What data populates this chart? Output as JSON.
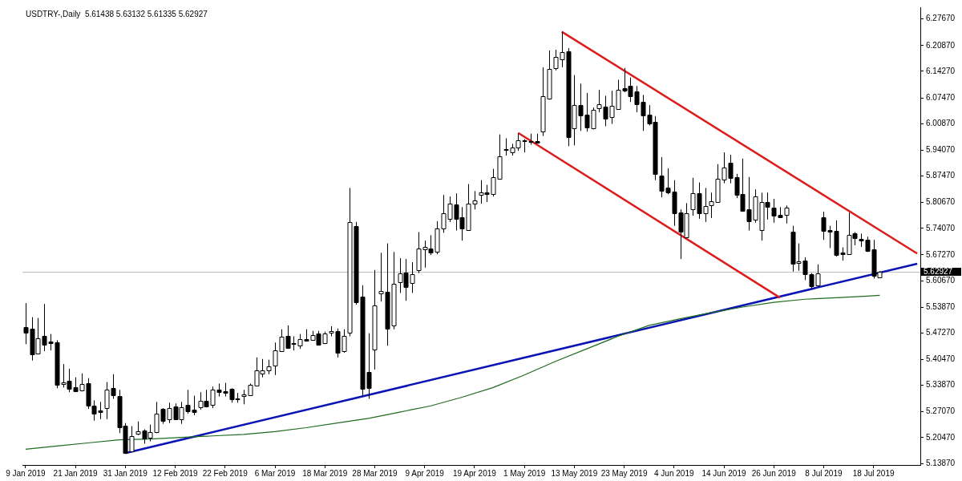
{
  "chart_data": {
    "type": "candlestick",
    "title": "USDTRY-,Daily  5.61438 5.63132 5.61335 5.62927",
    "categories": [
      "9 Jan 2019",
      null,
      null,
      null,
      null,
      null,
      null,
      null,
      "21 Jan 2019",
      null,
      null,
      null,
      null,
      null,
      null,
      null,
      "31 Jan 2019",
      null,
      null,
      null,
      null,
      null,
      null,
      null,
      "12 Feb 2019",
      null,
      null,
      null,
      null,
      null,
      null,
      null,
      "22 Feb 2019",
      null,
      null,
      null,
      null,
      null,
      null,
      null,
      "6 Mar 2019",
      null,
      null,
      null,
      null,
      null,
      null,
      null,
      "18 Mar 2019",
      null,
      null,
      null,
      null,
      null,
      null,
      null,
      "28 Mar 2019",
      null,
      null,
      null,
      null,
      null,
      null,
      null,
      "9 Apr 2019",
      null,
      null,
      null,
      null,
      null,
      null,
      null,
      "19 Apr 2019",
      null,
      null,
      null,
      null,
      null,
      null,
      null,
      "1 May 2019",
      null,
      null,
      null,
      null,
      null,
      null,
      null,
      "13 May 2019",
      null,
      null,
      null,
      null,
      null,
      null,
      null,
      "23 May 2019",
      null,
      null,
      null,
      null,
      null,
      null,
      null,
      "4 Jun 2019",
      null,
      null,
      null,
      null,
      null,
      null,
      null,
      "14 Jun 2019",
      null,
      null,
      null,
      null,
      null,
      null,
      null,
      "26 Jun 2019",
      null,
      null,
      null,
      null,
      null,
      null,
      null,
      "8 Jul 2019",
      null,
      null,
      null,
      null,
      null,
      null,
      null,
      "18 Jul 2019",
      null,
      null,
      null,
      null,
      null,
      null,
      null
    ],
    "ohlc": [
      [
        5.488,
        5.549,
        5.444,
        5.474
      ],
      [
        5.484,
        5.513,
        5.402,
        5.418
      ],
      [
        5.42,
        5.511,
        5.418,
        5.458
      ],
      [
        5.466,
        5.547,
        5.426,
        5.444
      ],
      [
        5.45,
        5.47,
        5.428,
        5.446
      ],
      [
        5.448,
        5.454,
        5.331,
        5.339
      ],
      [
        5.343,
        5.393,
        5.333,
        5.347
      ],
      [
        5.351,
        5.381,
        5.321,
        5.331
      ],
      [
        5.333,
        5.359,
        5.321,
        5.323
      ],
      [
        5.325,
        5.369,
        5.323,
        5.341
      ],
      [
        5.345,
        5.357,
        5.278,
        5.288
      ],
      [
        5.286,
        5.3,
        5.248,
        5.266
      ],
      [
        5.274,
        5.296,
        5.252,
        5.27
      ],
      [
        5.28,
        5.347,
        5.252,
        5.327
      ],
      [
        5.331,
        5.367,
        5.304,
        5.312
      ],
      [
        5.312,
        5.327,
        5.216,
        5.232
      ],
      [
        5.236,
        5.242,
        5.165,
        5.167
      ],
      [
        5.169,
        5.234,
        5.167,
        5.209
      ],
      [
        5.213,
        5.246,
        5.211,
        5.22
      ],
      [
        5.222,
        5.226,
        5.189,
        5.201
      ],
      [
        5.203,
        5.238,
        5.195,
        5.218
      ],
      [
        5.218,
        5.296,
        5.216,
        5.266
      ],
      [
        5.278,
        5.28,
        5.24,
        5.248
      ],
      [
        5.252,
        5.294,
        5.242,
        5.28
      ],
      [
        5.284,
        5.292,
        5.25,
        5.252
      ],
      [
        5.252,
        5.296,
        5.24,
        5.282
      ],
      [
        5.288,
        5.327,
        5.266,
        5.272
      ],
      [
        5.276,
        5.312,
        5.262,
        5.27
      ],
      [
        5.282,
        5.321,
        5.276,
        5.298
      ],
      [
        5.298,
        5.327,
        5.282,
        5.284
      ],
      [
        5.288,
        5.335,
        5.28,
        5.327
      ],
      [
        5.327,
        5.343,
        5.31,
        5.321
      ],
      [
        5.323,
        5.345,
        5.31,
        5.319
      ],
      [
        5.329,
        5.331,
        5.294,
        5.302
      ],
      [
        5.306,
        5.319,
        5.294,
        5.304
      ],
      [
        5.31,
        5.327,
        5.29,
        5.315
      ],
      [
        5.313,
        5.343,
        5.313,
        5.339
      ],
      [
        5.339,
        5.41,
        5.339,
        5.377
      ],
      [
        5.369,
        5.406,
        5.359,
        5.377
      ],
      [
        5.377,
        5.404,
        5.367,
        5.388
      ],
      [
        5.39,
        5.448,
        5.365,
        5.428
      ],
      [
        5.428,
        5.482,
        5.426,
        5.464
      ],
      [
        5.466,
        5.492,
        5.432,
        5.436
      ],
      [
        5.444,
        5.464,
        5.428,
        5.446
      ],
      [
        5.44,
        5.47,
        5.432,
        5.456
      ],
      [
        5.456,
        5.482,
        5.452,
        5.452
      ],
      [
        5.456,
        5.478,
        5.456,
        5.468
      ],
      [
        5.472,
        5.478,
        5.444,
        5.444
      ],
      [
        5.448,
        5.476,
        5.444,
        5.472
      ],
      [
        5.474,
        5.49,
        5.464,
        5.478
      ],
      [
        5.478,
        5.484,
        5.41,
        5.422
      ],
      [
        5.426,
        5.482,
        5.422,
        5.466
      ],
      [
        5.474,
        5.844,
        5.464,
        5.757
      ],
      [
        5.747,
        5.757,
        5.545,
        5.551
      ],
      [
        5.565,
        5.595,
        5.31,
        5.329
      ],
      [
        5.373,
        5.472,
        5.304,
        5.331
      ],
      [
        5.43,
        5.634,
        5.379,
        5.543
      ],
      [
        5.575,
        5.678,
        5.553,
        5.581
      ],
      [
        5.579,
        5.702,
        5.44,
        5.484
      ],
      [
        5.492,
        5.68,
        5.482,
        5.599
      ],
      [
        5.603,
        5.664,
        5.575,
        5.626
      ],
      [
        5.628,
        5.662,
        5.555,
        5.591
      ],
      [
        5.601,
        5.654,
        5.575,
        5.624
      ],
      [
        5.634,
        5.731,
        5.626,
        5.689
      ],
      [
        5.687,
        5.709,
        5.64,
        5.693
      ],
      [
        5.689,
        5.723,
        5.672,
        5.678
      ],
      [
        5.682,
        5.759,
        5.674,
        5.741
      ],
      [
        5.739,
        5.826,
        5.729,
        5.779
      ],
      [
        5.765,
        5.822,
        5.757,
        5.804
      ],
      [
        5.802,
        5.83,
        5.735,
        5.765
      ],
      [
        5.769,
        5.795,
        5.709,
        5.741
      ],
      [
        5.737,
        5.854,
        5.737,
        5.804
      ],
      [
        5.804,
        5.836,
        5.789,
        5.812
      ],
      [
        5.826,
        5.864,
        5.804,
        5.832
      ],
      [
        5.832,
        5.852,
        5.808,
        5.828
      ],
      [
        5.828,
        5.893,
        5.822,
        5.872
      ],
      [
        5.868,
        5.981,
        5.866,
        5.925
      ],
      [
        5.941,
        5.971,
        5.927,
        5.943
      ],
      [
        5.935,
        5.957,
        5.927,
        5.947
      ],
      [
        5.947,
        5.983,
        5.939,
        5.965
      ],
      [
        5.965,
        5.969,
        5.935,
        5.967
      ],
      [
        5.963,
        5.983,
        5.955,
        5.961
      ],
      [
        5.963,
        5.983,
        5.959,
        5.959
      ],
      [
        5.988,
        6.153,
        5.977,
        6.078
      ],
      [
        6.074,
        6.196,
        6.07,
        6.149
      ],
      [
        6.151,
        6.198,
        6.145,
        6.179
      ],
      [
        6.173,
        6.244,
        6.153,
        6.192
      ],
      [
        6.194,
        6.202,
        5.951,
        5.975
      ],
      [
        5.996,
        6.133,
        5.953,
        6.056
      ],
      [
        6.056,
        6.111,
        5.99,
        6.03
      ],
      [
        6.032,
        6.087,
        5.988,
        6.0
      ],
      [
        5.996,
        6.05,
        5.994,
        6.044
      ],
      [
        6.048,
        6.095,
        6.038,
        6.058
      ],
      [
        6.052,
        6.08,
        6.002,
        6.022
      ],
      [
        6.026,
        6.093,
        6.008,
        6.054
      ],
      [
        6.046,
        6.121,
        6.046,
        6.095
      ],
      [
        6.099,
        6.151,
        6.089,
        6.093
      ],
      [
        6.105,
        6.127,
        6.064,
        6.078
      ],
      [
        6.091,
        6.105,
        6.038,
        6.058
      ],
      [
        6.064,
        6.082,
        5.99,
        6.03
      ],
      [
        6.032,
        6.056,
        6.004,
        6.01
      ],
      [
        6.014,
        6.028,
        5.864,
        5.88
      ],
      [
        5.876,
        5.923,
        5.82,
        5.838
      ],
      [
        5.844,
        5.894,
        5.828,
        5.832
      ],
      [
        5.834,
        5.864,
        5.747,
        5.779
      ],
      [
        5.781,
        5.789,
        5.662,
        5.731
      ],
      [
        5.717,
        5.805,
        5.717,
        5.779
      ],
      [
        5.789,
        5.87,
        5.773,
        5.83
      ],
      [
        5.83,
        5.858,
        5.765,
        5.779
      ],
      [
        5.779,
        5.844,
        5.757,
        5.797
      ],
      [
        5.799,
        5.832,
        5.767,
        5.81
      ],
      [
        5.808,
        5.905,
        5.808,
        5.868
      ],
      [
        5.866,
        5.935,
        5.856,
        5.897
      ],
      [
        5.909,
        5.929,
        5.856,
        5.87
      ],
      [
        5.872,
        5.88,
        5.818,
        5.826
      ],
      [
        5.828,
        5.919,
        5.785,
        5.785
      ],
      [
        5.789,
        5.872,
        5.735,
        5.759
      ],
      [
        5.763,
        5.84,
        5.755,
        5.822
      ],
      [
        5.737,
        5.832,
        5.709,
        5.808
      ],
      [
        5.808,
        5.832,
        5.763,
        5.795
      ],
      [
        5.793,
        5.816,
        5.755,
        5.773
      ],
      [
        5.775,
        5.795,
        5.769,
        5.769
      ],
      [
        5.775,
        5.799,
        5.753,
        5.793
      ],
      [
        5.731,
        5.747,
        5.63,
        5.648
      ],
      [
        5.652,
        5.702,
        5.632,
        5.656
      ],
      [
        5.658,
        5.666,
        5.608,
        5.624
      ],
      [
        5.624,
        5.626,
        5.587,
        5.593
      ],
      [
        5.595,
        5.648,
        5.591,
        5.626
      ],
      [
        5.769,
        5.783,
        5.711,
        5.735
      ],
      [
        5.737,
        5.747,
        5.69,
        5.733
      ],
      [
        5.735,
        5.761,
        5.668,
        5.674
      ],
      [
        5.678,
        5.692,
        5.658,
        5.674
      ],
      [
        5.674,
        5.781,
        5.674,
        5.723
      ],
      [
        5.727,
        5.731,
        5.697,
        5.715
      ],
      [
        5.713,
        5.727,
        5.693,
        5.709
      ],
      [
        5.711,
        5.719,
        5.68,
        5.682
      ],
      [
        5.687,
        5.711,
        5.612,
        5.62
      ],
      [
        5.61438,
        5.63132,
        5.61335,
        5.62927
      ],
      null,
      null,
      null,
      null,
      null,
      null
    ],
    "series": [
      {
        "type": "line",
        "color": "#1e6b1e",
        "values": [
          5.175,
          null,
          null,
          null,
          null,
          5.183,
          null,
          null,
          null,
          null,
          5.191,
          null,
          null,
          null,
          null,
          5.199,
          null,
          null,
          null,
          null,
          5.201,
          null,
          null,
          null,
          null,
          5.205,
          null,
          null,
          null,
          null,
          5.209,
          null,
          null,
          null,
          null,
          5.213,
          null,
          null,
          null,
          null,
          5.22,
          null,
          null,
          null,
          null,
          5.23,
          null,
          null,
          null,
          null,
          5.242,
          null,
          null,
          null,
          null,
          5.254,
          null,
          null,
          null,
          null,
          5.27,
          null,
          null,
          null,
          null,
          5.286,
          null,
          null,
          null,
          null,
          5.308,
          null,
          null,
          null,
          null,
          5.333,
          null,
          null,
          null,
          null,
          5.365,
          null,
          null,
          null,
          null,
          5.4,
          null,
          null,
          null,
          null,
          5.432,
          null,
          null,
          null,
          null,
          5.464,
          null,
          null,
          null,
          null,
          5.492,
          null,
          null,
          null,
          null,
          5.509,
          null,
          null,
          null,
          null,
          5.525,
          null,
          null,
          null,
          null,
          5.539,
          null,
          null,
          null,
          null,
          5.551,
          null,
          null,
          null,
          null,
          5.559,
          null,
          null,
          null,
          null,
          5.563,
          null,
          null,
          null,
          null,
          5.567,
          null,
          5.569,
          null,
          null,
          null,
          null,
          null,
          null
        ]
      },
      {
        "type": "line",
        "color": "#dd1c1c",
        "values": [
          null,
          null,
          null,
          null,
          null,
          null,
          null,
          null,
          null,
          null,
          null,
          null,
          null,
          null,
          null,
          null,
          null,
          null,
          null,
          null,
          null,
          null,
          null,
          null,
          null,
          null,
          null,
          null,
          null,
          null,
          null,
          null,
          null,
          null,
          null,
          null,
          null,
          null,
          null,
          null,
          null,
          null,
          null,
          null,
          null,
          null,
          null,
          null,
          null,
          null,
          null,
          null,
          null,
          null,
          null,
          null,
          null,
          null,
          null,
          null,
          null,
          null,
          null,
          null,
          null,
          null,
          null,
          null,
          null,
          null,
          null,
          null,
          null,
          null,
          null,
          null,
          null,
          null,
          null,
          null,
          null,
          null,
          null,
          null,
          null,
          null,
          6.244,
          null,
          null,
          null,
          null,
          null,
          null,
          null,
          null,
          null,
          null,
          null,
          null,
          null,
          null,
          null,
          null,
          null,
          null,
          null,
          null,
          null,
          null,
          null,
          null,
          null,
          null,
          null,
          null,
          null,
          null,
          null,
          null,
          null,
          null,
          null,
          null,
          null,
          null,
          null,
          null,
          null,
          null,
          null,
          null,
          null,
          null,
          null,
          null,
          null,
          null,
          null,
          null,
          null,
          null,
          null,
          null,
          5.676
        ]
      },
      {
        "type": "line",
        "color": "#dd1c1c",
        "values": [
          null,
          null,
          null,
          null,
          null,
          null,
          null,
          null,
          null,
          null,
          null,
          null,
          null,
          null,
          null,
          null,
          null,
          null,
          null,
          null,
          null,
          null,
          null,
          null,
          null,
          null,
          null,
          null,
          null,
          null,
          null,
          null,
          null,
          null,
          null,
          null,
          null,
          null,
          null,
          null,
          null,
          null,
          null,
          null,
          null,
          null,
          null,
          null,
          null,
          null,
          null,
          null,
          null,
          null,
          null,
          null,
          null,
          null,
          null,
          null,
          null,
          null,
          null,
          null,
          null,
          null,
          null,
          null,
          null,
          null,
          null,
          null,
          null,
          null,
          null,
          null,
          null,
          null,
          null,
          5.985,
          null,
          null,
          null,
          null,
          null,
          null,
          null,
          null,
          null,
          null,
          null,
          null,
          null,
          null,
          null,
          null,
          null,
          null,
          null,
          null,
          null,
          null,
          null,
          null,
          null,
          null,
          null,
          null,
          null,
          null,
          null,
          null,
          null,
          null,
          null,
          null,
          null,
          null,
          null,
          null,
          null,
          5.563,
          null,
          null,
          null,
          null,
          null,
          null,
          null,
          null,
          null,
          null,
          null,
          null,
          null,
          null,
          null,
          null,
          null,
          null,
          null,
          null,
          null,
          null
        ]
      },
      {
        "type": "line",
        "color": "#0a14b4",
        "values": [
          null,
          null,
          null,
          null,
          null,
          null,
          null,
          null,
          null,
          null,
          null,
          null,
          null,
          null,
          null,
          null,
          5.165,
          null,
          null,
          null,
          null,
          null,
          null,
          null,
          null,
          null,
          null,
          null,
          null,
          null,
          null,
          null,
          null,
          null,
          null,
          null,
          null,
          null,
          null,
          null,
          null,
          null,
          null,
          null,
          null,
          null,
          null,
          null,
          null,
          null,
          null,
          null,
          null,
          null,
          null,
          null,
          null,
          null,
          null,
          null,
          null,
          null,
          null,
          null,
          null,
          null,
          null,
          null,
          null,
          null,
          null,
          null,
          null,
          null,
          null,
          null,
          null,
          null,
          null,
          null,
          null,
          null,
          null,
          null,
          null,
          null,
          null,
          null,
          null,
          null,
          null,
          null,
          null,
          null,
          null,
          null,
          null,
          null,
          null,
          null,
          null,
          null,
          null,
          null,
          null,
          null,
          null,
          null,
          null,
          null,
          null,
          null,
          null,
          null,
          null,
          null,
          null,
          null,
          null,
          null,
          null,
          null,
          null,
          null,
          null,
          null,
          null,
          null,
          null,
          null,
          null,
          null,
          null,
          null,
          null,
          null,
          null,
          null,
          null,
          null,
          null,
          null,
          null,
          5.65
        ]
      }
    ],
    "ylim": [
      5.1346,
      6.3068
    ],
    "yticks": [
      {
        "value": 5.1387,
        "label": "5.13870"
      },
      {
        "value": 5.2047,
        "label": "5.20470"
      },
      {
        "value": 5.2707,
        "label": "5.27070"
      },
      {
        "value": 5.3387,
        "label": "5.33870"
      },
      {
        "value": 5.4047,
        "label": "5.40470"
      },
      {
        "value": 5.4727,
        "label": "5.47270"
      },
      {
        "value": 5.5387,
        "label": "5.53870"
      },
      {
        "value": 5.6067,
        "label": "5.60670"
      },
      {
        "value": 5.6727,
        "label": "5.67270"
      },
      {
        "value": 5.7407,
        "label": "5.74070"
      },
      {
        "value": 5.8067,
        "label": "5.80670"
      },
      {
        "value": 5.8747,
        "label": "5.87470"
      },
      {
        "value": 5.9407,
        "label": "5.94070"
      },
      {
        "value": 6.0087,
        "label": "6.00870"
      },
      {
        "value": 6.0747,
        "label": "6.07470"
      },
      {
        "value": 6.1427,
        "label": "6.14270"
      },
      {
        "value": 6.2087,
        "label": "6.20870"
      },
      {
        "value": 6.2767,
        "label": "6.27670"
      }
    ],
    "ref_lines": [
      {
        "axis": "y",
        "value": 5.62927,
        "label": "5.62927",
        "color": "#c0c0c0"
      }
    ],
    "grid": false,
    "legend": false
  }
}
